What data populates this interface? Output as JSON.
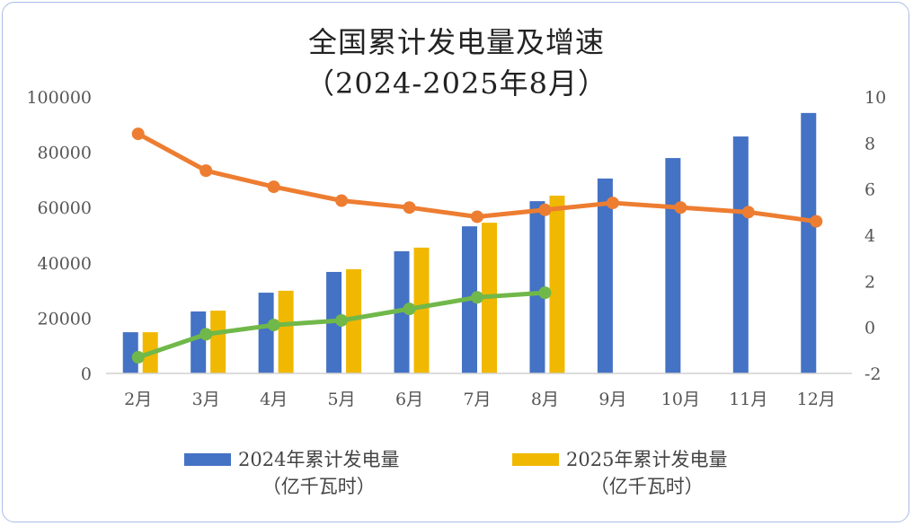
{
  "chart_data": {
    "type": "bar+line",
    "title": "全国累计发电量及增速",
    "subtitle": "（2024-2025年8月）",
    "categories": [
      "2月",
      "3月",
      "4月",
      "5月",
      "6月",
      "7月",
      "8月",
      "9月",
      "10月",
      "11月",
      "12月"
    ],
    "y_left": {
      "range": [
        0,
        100000
      ],
      "ticks": [
        "0",
        "20000",
        "40000",
        "60000",
        "80000",
        "100000"
      ]
    },
    "y_right": {
      "range": [
        -2,
        10
      ],
      "ticks": [
        "-2",
        "0",
        "2",
        "4",
        "6",
        "8",
        "10"
      ]
    },
    "series": [
      {
        "name": "2024年累计发电量",
        "name_line2": "（亿千瓦时）",
        "type": "bar",
        "axis": "left",
        "color": "#4472c4",
        "values": [
          14900,
          22400,
          29200,
          36700,
          44200,
          53200,
          62300,
          70500,
          77900,
          85700,
          94200
        ]
      },
      {
        "name": "2025年累计发电量",
        "name_line2": "（亿千瓦时）",
        "type": "bar",
        "axis": "left",
        "color": "#f0b800",
        "values": [
          14900,
          22700,
          29900,
          37700,
          45500,
          54500,
          64300,
          null,
          null,
          null,
          null
        ]
      },
      {
        "type": "line",
        "axis": "right",
        "color": "#ed7d31",
        "values": [
          8.4,
          6.8,
          6.1,
          5.5,
          5.2,
          4.8,
          5.1,
          5.4,
          5.2,
          5.0,
          4.6
        ]
      },
      {
        "type": "line",
        "axis": "right",
        "color": "#70b84a",
        "values": [
          -1.3,
          -0.3,
          0.1,
          0.3,
          0.8,
          1.3,
          1.5,
          null,
          null,
          null,
          null
        ]
      }
    ],
    "grid": false,
    "legend": "bottom"
  }
}
